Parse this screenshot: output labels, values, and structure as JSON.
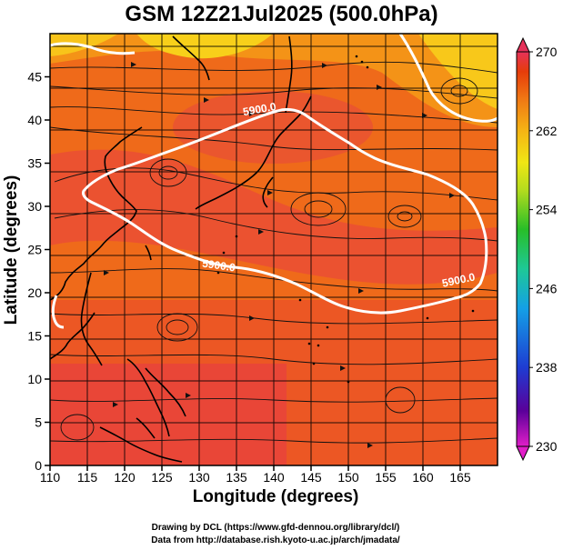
{
  "title": "GSM 12Z21Jul2025 (500.0hPa)",
  "x_axis": {
    "label": "Longitude (degrees)",
    "range": [
      110,
      170
    ],
    "ticks": [
      "110",
      "115",
      "120",
      "125",
      "130",
      "135",
      "140",
      "145",
      "150",
      "155",
      "160",
      "165"
    ]
  },
  "y_axis": {
    "label": "Latitude (degrees)",
    "range": [
      0,
      50
    ],
    "ticks": [
      "0",
      "5",
      "10",
      "15",
      "20",
      "25",
      "30",
      "35",
      "40",
      "45"
    ]
  },
  "colorbar": {
    "min": 230,
    "max": 270,
    "ticks": [
      "230",
      "238",
      "246",
      "254",
      "262",
      "270"
    ],
    "colors": [
      "#e01ec8",
      "#3c0096",
      "#1e3cd2",
      "#14a0e6",
      "#1ec896",
      "#28be28",
      "#b4dc1e",
      "#f0e614",
      "#f5b414",
      "#f07814",
      "#e63c0a",
      "#e6325a"
    ]
  },
  "contour": {
    "label": "5900.0",
    "value": 5900.0
  },
  "credits": {
    "drawing": "Drawing by DCL (https://www.gfd-dennou.org/library/dcl/)",
    "data": "Data from http://database.rish.kyoto-u.ac.jp/arch/jmadata/"
  },
  "palette": {
    "field_warm": "#f07014",
    "field_hot": "#e8463a",
    "field_cool": "#f8c418",
    "coast": "#000000",
    "contour": "#ffffff"
  }
}
